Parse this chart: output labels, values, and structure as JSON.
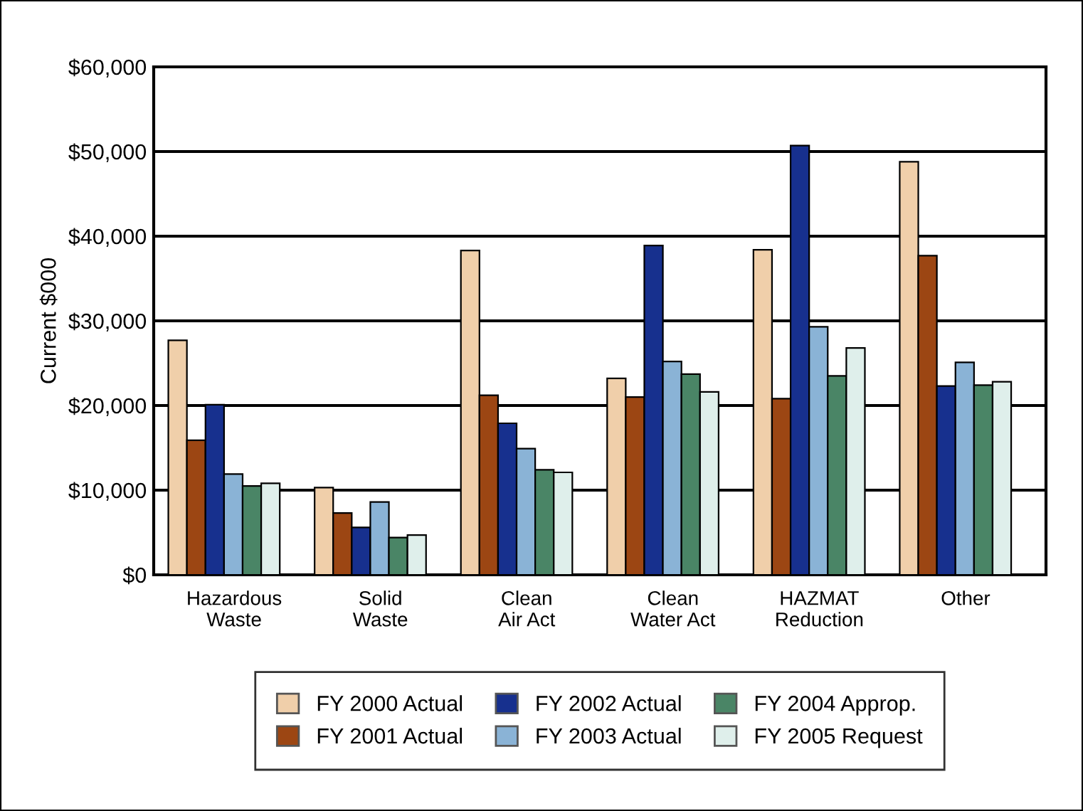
{
  "chart_data": {
    "type": "bar",
    "ylabel": "Current $000",
    "categories": [
      "Hazardous\nWaste",
      "Solid\nWaste",
      "Clean\nAir Act",
      "Clean\nWater Act",
      "HAZMAT\nReduction",
      "Other"
    ],
    "series": [
      {
        "name": "FY 2000 Actual",
        "color": "#f0cfaa",
        "values": [
          27700,
          10300,
          38300,
          23200,
          38400,
          48800
        ]
      },
      {
        "name": "FY 2001 Actual",
        "color": "#9c4613",
        "values": [
          15900,
          7300,
          21200,
          21000,
          20800,
          37700
        ]
      },
      {
        "name": "FY 2002 Actual",
        "color": "#17308e",
        "values": [
          20100,
          5600,
          17900,
          38900,
          50700,
          22300
        ]
      },
      {
        "name": "FY 2003 Actual",
        "color": "#8ab3d6",
        "values": [
          11900,
          8600,
          14900,
          25200,
          29300,
          25100
        ]
      },
      {
        "name": "FY 2004 Approp.",
        "color": "#4a8566",
        "values": [
          10500,
          4400,
          12400,
          23700,
          23500,
          22400
        ]
      },
      {
        "name": "FY 2005 Request",
        "color": "#dfefeb",
        "values": [
          10800,
          4700,
          12100,
          21600,
          26800,
          22800
        ]
      }
    ],
    "ylim": [
      0,
      60000
    ],
    "yticks": [
      {
        "value": 0,
        "label": "$0"
      },
      {
        "value": 10000,
        "label": "$10,000"
      },
      {
        "value": 20000,
        "label": "$20,000"
      },
      {
        "value": 30000,
        "label": "$30,000"
      },
      {
        "value": 40000,
        "label": "$40,000"
      },
      {
        "value": 50000,
        "label": "$50,000"
      },
      {
        "value": 60000,
        "label": "$60,000"
      }
    ],
    "grid": "y",
    "legend": "bottom"
  }
}
